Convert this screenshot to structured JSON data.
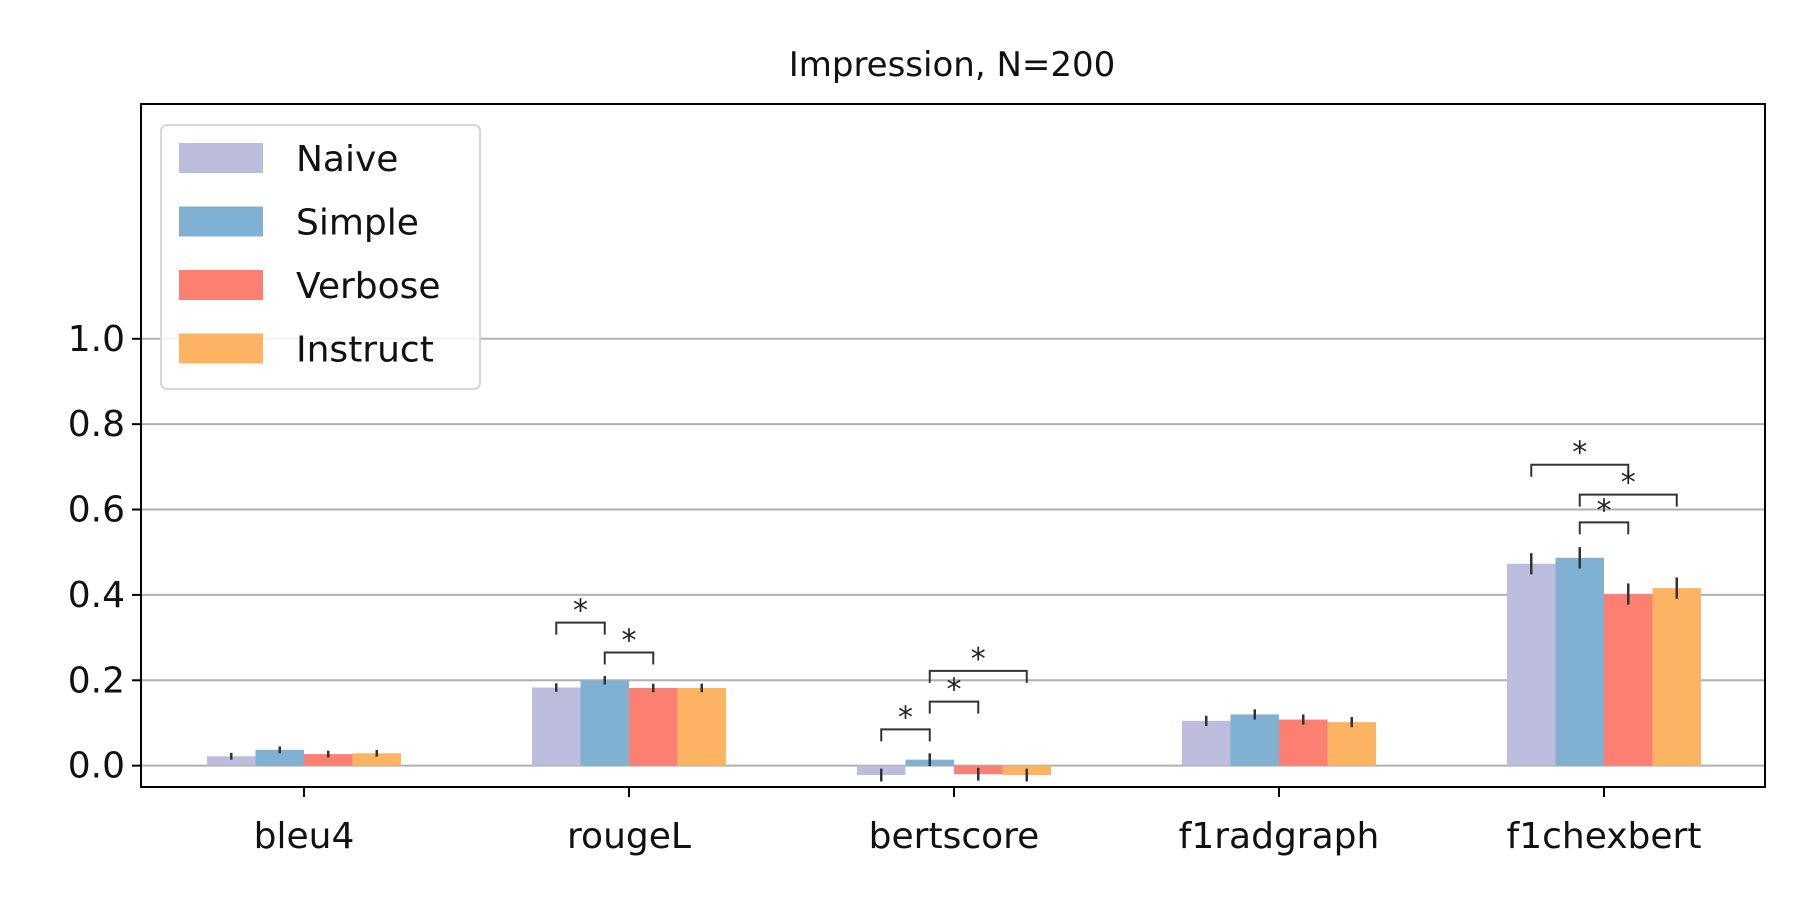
{
  "chart_data": {
    "type": "bar",
    "title": "Impression, N=200",
    "xlabel": "",
    "ylabel": "",
    "categories": [
      "bleu4",
      "rougeL",
      "bertscore",
      "f1radgraph",
      "f1chexbert"
    ],
    "series": [
      {
        "name": "Naive",
        "color": "#bcbddc",
        "values": [
          0.022,
          0.183,
          -0.022,
          0.105,
          0.473
        ],
        "errors": [
          0.008,
          0.01,
          0.015,
          0.012,
          0.025
        ]
      },
      {
        "name": "Simple",
        "color": "#80b1d3",
        "values": [
          0.037,
          0.2,
          0.014,
          0.12,
          0.487
        ],
        "errors": [
          0.008,
          0.01,
          0.015,
          0.012,
          0.025
        ]
      },
      {
        "name": "Verbose",
        "color": "#fb8072",
        "values": [
          0.027,
          0.182,
          -0.02,
          0.108,
          0.402
        ],
        "errors": [
          0.008,
          0.01,
          0.015,
          0.012,
          0.025
        ]
      },
      {
        "name": "Instruct",
        "color": "#fdb462",
        "values": [
          0.029,
          0.182,
          -0.022,
          0.102,
          0.416
        ],
        "errors": [
          0.008,
          0.01,
          0.015,
          0.012,
          0.025
        ]
      }
    ],
    "ylim": [
      -0.05,
      1.55
    ],
    "yticks": [
      0.0,
      0.2,
      0.4,
      0.6,
      0.8,
      1.0
    ],
    "ytick_labels": [
      "0.0",
      "0.2",
      "0.4",
      "0.6",
      "0.8",
      "1.0"
    ],
    "grid": true,
    "legend_position": "top-left",
    "significance": [
      {
        "category": 1,
        "from": 0,
        "to": 1,
        "y": 0.335,
        "label": "*"
      },
      {
        "category": 1,
        "from": 1,
        "to": 2,
        "y": 0.265,
        "label": "*"
      },
      {
        "category": 2,
        "from": 0,
        "to": 1,
        "y": 0.085,
        "label": "*"
      },
      {
        "category": 2,
        "from": 1,
        "to": 2,
        "y": 0.15,
        "label": "*"
      },
      {
        "category": 2,
        "from": 1,
        "to": 3,
        "y": 0.222,
        "label": "*"
      },
      {
        "category": 4,
        "from": 0,
        "to": 2,
        "y": 0.705,
        "label": "*"
      },
      {
        "category": 4,
        "from": 1,
        "to": 3,
        "y": 0.635,
        "label": "*"
      },
      {
        "category": 4,
        "from": 1,
        "to": 2,
        "y": 0.57,
        "label": "*"
      }
    ]
  }
}
